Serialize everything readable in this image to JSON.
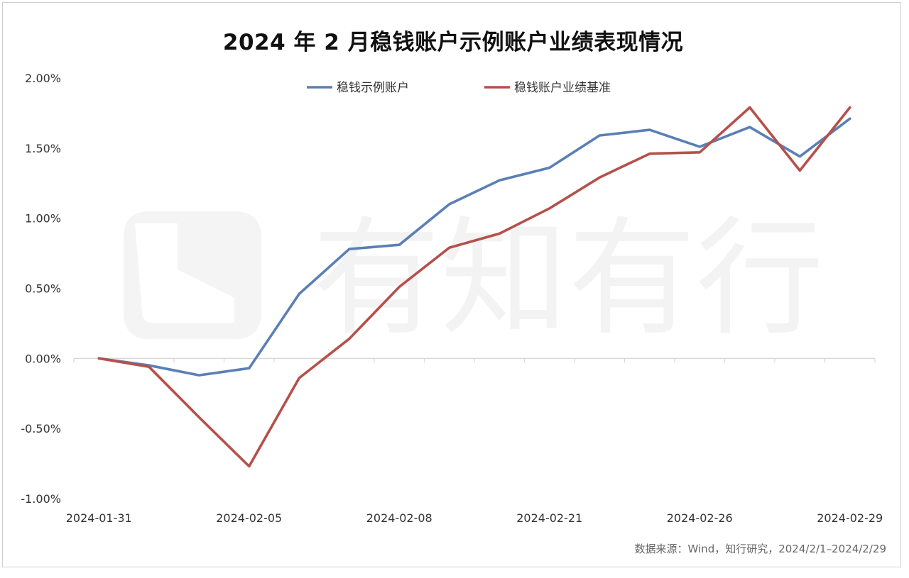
{
  "chart_data": {
    "type": "line",
    "title": "2024 年 2 月稳钱账户示例账户业绩表现情况",
    "xlabel": "",
    "ylabel": "",
    "x": [
      "2024-01-31",
      "2024-02-01",
      "2024-02-02",
      "2024-02-05",
      "2024-02-06",
      "2024-02-07",
      "2024-02-08",
      "2024-02-19",
      "2024-02-20",
      "2024-02-21",
      "2024-02-22",
      "2024-02-23",
      "2024-02-26",
      "2024-02-27",
      "2024-02-28",
      "2024-02-29"
    ],
    "x_tick_labels": [
      "2024-01-31",
      "2024-02-05",
      "2024-02-08",
      "2024-02-21",
      "2024-02-26",
      "2024-02-29"
    ],
    "x_tick_indices": [
      0,
      3,
      6,
      9,
      12,
      15
    ],
    "ylim": [
      -1.0,
      2.0
    ],
    "y_ticks": [
      -1.0,
      -0.5,
      0.0,
      0.5,
      1.0,
      1.5,
      2.0
    ],
    "y_tick_labels": [
      "-1.00%",
      "-0.50%",
      "0.00%",
      "0.50%",
      "1.00%",
      "1.50%",
      "2.00%"
    ],
    "grid": false,
    "legend_position": "top-center",
    "series": [
      {
        "name": "稳钱示例账户",
        "color": "#5b7fb5",
        "values": [
          0.0,
          -0.05,
          -0.12,
          -0.07,
          0.46,
          0.78,
          0.81,
          1.1,
          1.27,
          1.36,
          1.59,
          1.63,
          1.51,
          1.65,
          1.44,
          1.71
        ]
      },
      {
        "name": "稳钱账户业绩基准",
        "color": "#b5504b",
        "values": [
          0.0,
          -0.06,
          -0.42,
          -0.77,
          -0.14,
          0.14,
          0.51,
          0.79,
          0.89,
          1.07,
          1.29,
          1.46,
          1.47,
          1.79,
          1.34,
          1.79
        ]
      }
    ]
  },
  "watermark": {
    "text": "有知有行",
    "icon": "logo-icon"
  },
  "source_note": "数据来源：Wind，知行研究，2024/2/1–2024/2/29"
}
